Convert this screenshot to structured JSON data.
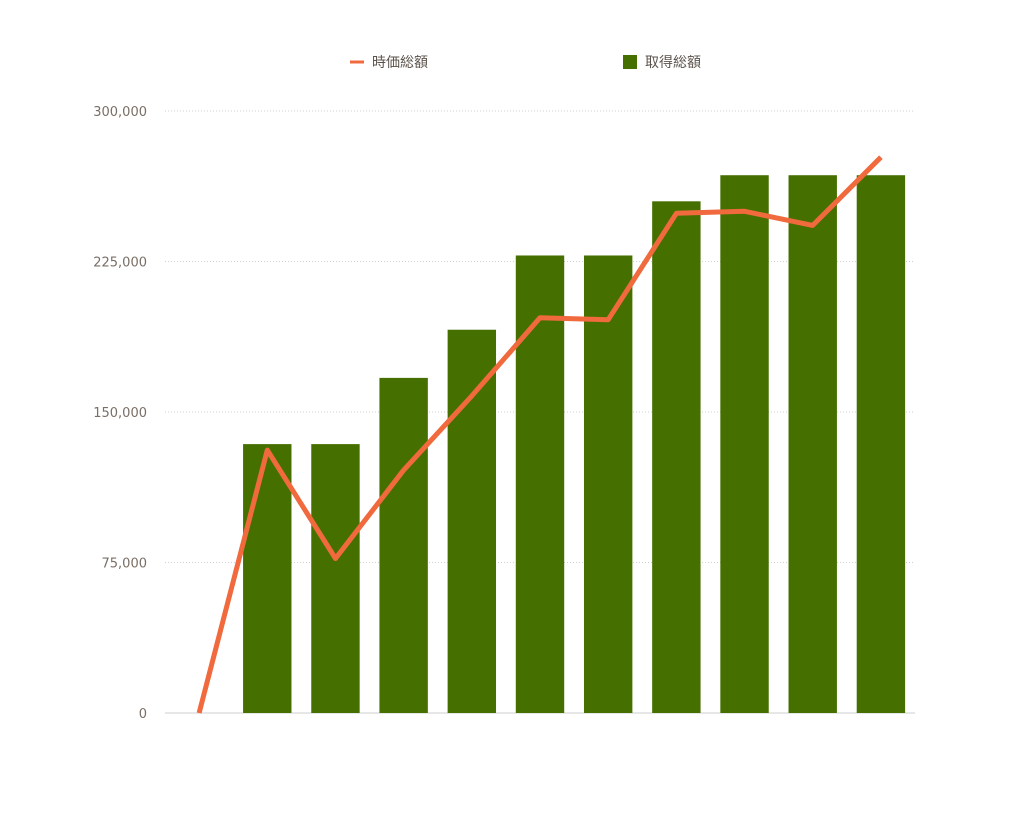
{
  "chart_data": {
    "type": "bar",
    "title": "",
    "xlabel": "",
    "ylabel": "",
    "ylim": [
      0,
      300000
    ],
    "yticks": [
      0,
      75000,
      150000,
      225000,
      300000
    ],
    "ytick_labels": [
      "0",
      "75,000",
      "150,000",
      "225,000",
      "300,000"
    ],
    "grid": true,
    "legend_position": "top",
    "series": [
      {
        "name": "時価総額",
        "type": "line",
        "color": "#f06a3d",
        "values": [
          0,
          131000,
          77000,
          121000,
          158000,
          197000,
          196000,
          249000,
          250000,
          243000,
          277000
        ]
      },
      {
        "name": "取得総額",
        "type": "bar",
        "color": "#457000",
        "values": [
          null,
          134000,
          134000,
          167000,
          191000,
          228000,
          228000,
          255000,
          268000,
          268000,
          268000
        ]
      }
    ]
  }
}
